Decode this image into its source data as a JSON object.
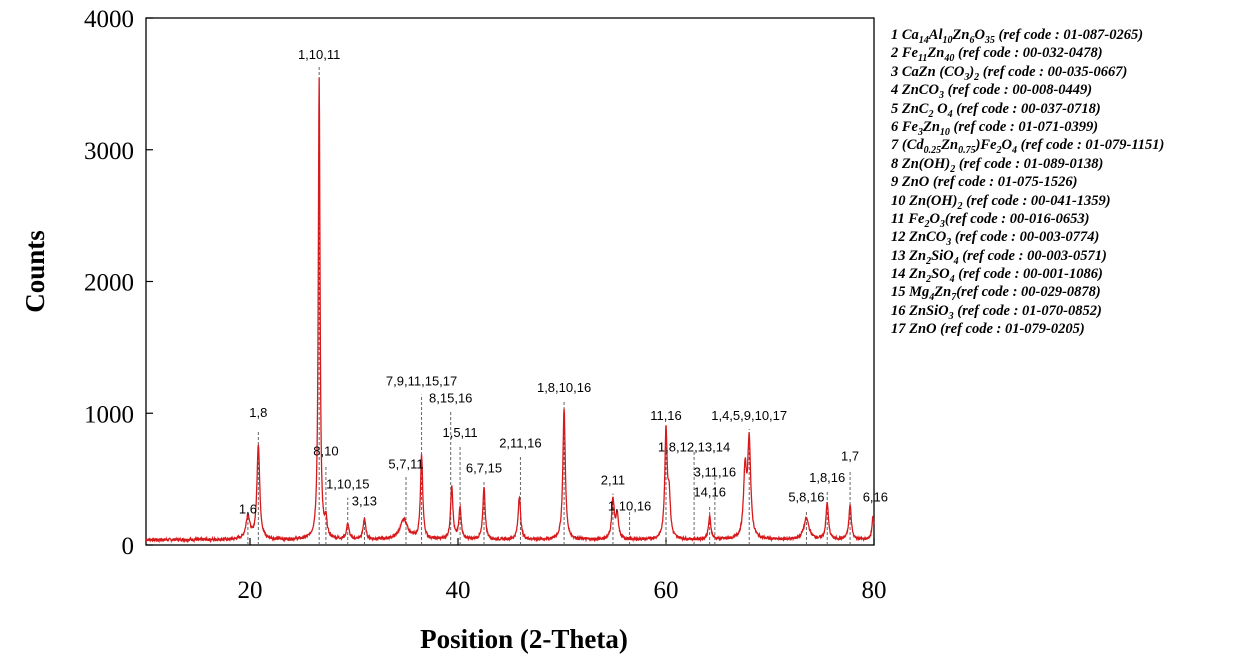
{
  "chart_data": {
    "type": "line",
    "title": "",
    "xlabel": "Position (2-Theta)",
    "ylabel": "Counts",
    "xlim": [
      10,
      80
    ],
    "ylim": [
      0,
      4000
    ],
    "x_ticks": [
      "20",
      "40",
      "60",
      "80"
    ],
    "y_ticks": [
      "0",
      "1000",
      "2000",
      "3000",
      "4000"
    ],
    "grid": false,
    "line_color": "#d7191c",
    "reference_line_color": "#555555",
    "baseline_counts": 40,
    "peaks": [
      {
        "x": 19.8,
        "y": 180,
        "width": 0.22
      },
      {
        "x": 20.8,
        "y": 720,
        "width": 0.16
      },
      {
        "x": 26.65,
        "y": 3500,
        "width": 0.1
      },
      {
        "x": 27.3,
        "y": 130,
        "width": 0.12
      },
      {
        "x": 29.4,
        "y": 120,
        "width": 0.14
      },
      {
        "x": 31.0,
        "y": 160,
        "width": 0.14
      },
      {
        "x": 34.8,
        "y": 150,
        "width": 0.45
      },
      {
        "x": 36.5,
        "y": 630,
        "width": 0.13
      },
      {
        "x": 39.4,
        "y": 410,
        "width": 0.13
      },
      {
        "x": 40.2,
        "y": 240,
        "width": 0.13
      },
      {
        "x": 42.5,
        "y": 400,
        "width": 0.13
      },
      {
        "x": 45.9,
        "y": 330,
        "width": 0.14
      },
      {
        "x": 50.2,
        "y": 990,
        "width": 0.14
      },
      {
        "x": 54.9,
        "y": 300,
        "width": 0.15
      },
      {
        "x": 55.3,
        "y": 180,
        "width": 0.15
      },
      {
        "x": 60.0,
        "y": 810,
        "width": 0.14
      },
      {
        "x": 60.3,
        "y": 300,
        "width": 0.14
      },
      {
        "x": 64.2,
        "y": 170,
        "width": 0.14
      },
      {
        "x": 67.6,
        "y": 500,
        "width": 0.17
      },
      {
        "x": 68.0,
        "y": 730,
        "width": 0.17
      },
      {
        "x": 73.5,
        "y": 160,
        "width": 0.3
      },
      {
        "x": 75.5,
        "y": 280,
        "width": 0.14
      },
      {
        "x": 77.7,
        "y": 260,
        "width": 0.14
      },
      {
        "x": 79.9,
        "y": 170,
        "width": 0.12
      }
    ],
    "annotations": [
      {
        "text": "1,6",
        "x": 19.8,
        "y": 240,
        "line_top": 210
      },
      {
        "text": "1,8",
        "x": 20.8,
        "y": 970,
        "line_top": 870
      },
      {
        "text": "1,10,11",
        "x": 26.65,
        "y": 3690,
        "line_top": 3640
      },
      {
        "text": "8,10",
        "x": 27.3,
        "y": 680,
        "line_top": 600
      },
      {
        "text": "1,10,15",
        "x": 29.4,
        "y": 430,
        "line_top": 360
      },
      {
        "text": "3,13",
        "x": 31.0,
        "y": 300,
        "line_top": 230
      },
      {
        "text": "5,7,11",
        "x": 35.0,
        "y": 580,
        "line_top": 520
      },
      {
        "text": "7,9,11,15,17",
        "x": 36.5,
        "y": 1210,
        "line_top": 1140
      },
      {
        "text": "8,15,16",
        "x": 39.3,
        "y": 1080,
        "line_top": 1010
      },
      {
        "text": "1,5,11",
        "x": 40.2,
        "y": 820,
        "line_top": 750
      },
      {
        "text": "6,7,15",
        "x": 42.5,
        "y": 550,
        "line_top": 490
      },
      {
        "text": "2,11,16",
        "x": 46.0,
        "y": 740,
        "line_top": 670
      },
      {
        "text": "1,8,10,16",
        "x": 50.2,
        "y": 1160,
        "line_top": 1090
      },
      {
        "text": "2,11",
        "x": 54.9,
        "y": 460,
        "line_top": 390
      },
      {
        "text": "1,10,16",
        "x": 56.5,
        "y": 260,
        "line_top": 260
      },
      {
        "text": "11,16",
        "x": 60.0,
        "y": 950,
        "line_top": 880
      },
      {
        "text": "1,8,12,13,14",
        "x": 62.7,
        "y": 710,
        "line_top": 710
      },
      {
        "text": "3,11,16",
        "x": 64.7,
        "y": 520,
        "line_top": 520
      },
      {
        "text": "14,16",
        "x": 64.2,
        "y": 370,
        "line_top": 300
      },
      {
        "text": "1,4,5,9,10,17",
        "x": 68.0,
        "y": 950,
        "line_top": 880
      },
      {
        "text": "5,8,16",
        "x": 73.5,
        "y": 330,
        "line_top": 260
      },
      {
        "text": "1,8,16",
        "x": 75.5,
        "y": 480,
        "line_top": 410
      },
      {
        "text": "1,7",
        "x": 77.7,
        "y": 640,
        "line_top": 570
      },
      {
        "text": "6,16",
        "x": 80.0,
        "y": 330,
        "line_top": 0
      }
    ],
    "legend": [
      {
        "num": "1",
        "text": "Ca14Al10Zn6O35 (ref code : 01-087-0265)"
      },
      {
        "num": "2",
        "text": "Fe11Zn40 (ref code : 00-032-0478)"
      },
      {
        "num": "3",
        "text": "CaZn (CO3)2 (ref code : 00-035-0667)"
      },
      {
        "num": "4",
        "text": "ZnCO3 (ref code : 00-008-0449)"
      },
      {
        "num": "5",
        "text": "ZnC2 O4 (ref code : 00-037-0718)"
      },
      {
        "num": "6",
        "text": "Fe3Zn10 (ref code : 01-071-0399)"
      },
      {
        "num": "7",
        "text": "(Cd0.25Zn0.75)Fe2O4 (ref code : 01-079-1151)"
      },
      {
        "num": "8",
        "text": "Zn(OH)2 (ref code : 01-089-0138)"
      },
      {
        "num": "9",
        "text": "ZnO (ref code : 01-075-1526)"
      },
      {
        "num": "10",
        "text": "Zn(OH)2 (ref code : 00-041-1359)"
      },
      {
        "num": "11",
        "text": "Fe2O3(ref code : 00-016-0653)"
      },
      {
        "num": "12",
        "text": "ZnCO3 (ref code : 00-003-0774)"
      },
      {
        "num": "13",
        "text": "Zn2SiO4 (ref code : 00-003-0571)"
      },
      {
        "num": "14",
        "text": "Zn2SO4 (ref code : 00-001-1086)"
      },
      {
        "num": "15",
        "text": "Mg4Zn7(ref code : 00-029-0878)"
      },
      {
        "num": "16",
        "text": "ZnSiO3 (ref code : 01-070-0852)"
      },
      {
        "num": "17",
        "text": "ZnO (ref code : 01-079-0205)"
      }
    ]
  }
}
